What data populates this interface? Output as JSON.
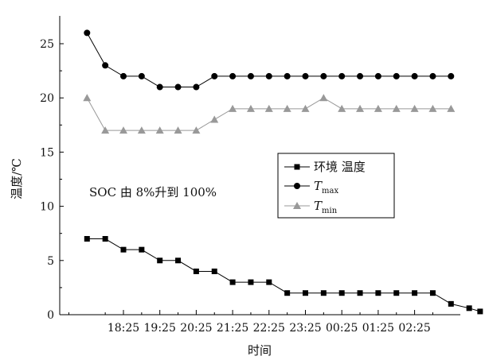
{
  "chart_data": {
    "type": "line",
    "xlabel": "时间",
    "ylabel": "温度/℃",
    "ylim": [
      0,
      27
    ],
    "yticks": [
      0,
      5,
      10,
      15,
      20,
      25
    ],
    "xtick_labels": [
      "18:25",
      "19:25",
      "20:25",
      "21:25",
      "22:25",
      "23:25",
      "00:25",
      "01:25",
      "02:25"
    ],
    "annotation": "SOC 由 8%升到 100%",
    "legend": {
      "position": "center-right",
      "entries": [
        {
          "label": "环境 温度",
          "sub": ""
        },
        {
          "label": "T",
          "sub": "max"
        },
        {
          "label": "T",
          "sub": "min"
        }
      ]
    },
    "series": [
      {
        "name": "环境 温度",
        "marker": "square",
        "color": "#000000",
        "x": [
          -1,
          -0.5,
          0,
          0.5,
          1,
          1.5,
          2,
          2.5,
          3,
          3.5,
          4,
          4.5,
          5,
          5.5,
          6,
          6.5,
          7,
          7.5,
          8,
          8.5,
          9,
          9.5,
          9.8
        ],
        "values": [
          7,
          7,
          6,
          6,
          5,
          5,
          4,
          4,
          3,
          3,
          3,
          2,
          2,
          2,
          2,
          2,
          2,
          2,
          2,
          2,
          1,
          0.6,
          0.3
        ]
      },
      {
        "name": "Tmax",
        "marker": "circle",
        "color": "#000000",
        "x": [
          -1,
          -0.5,
          0,
          0.5,
          1,
          1.5,
          2,
          2.5,
          3,
          3.5,
          4,
          4.5,
          5,
          5.5,
          6,
          6.5,
          7,
          7.5,
          8,
          8.5,
          9
        ],
        "values": [
          26,
          23,
          22,
          22,
          21,
          21,
          21,
          22,
          22,
          22,
          22,
          22,
          22,
          22,
          22,
          22,
          22,
          22,
          22,
          22,
          22
        ]
      },
      {
        "name": "Tmin",
        "marker": "triangle",
        "color": "#999999",
        "x": [
          -1,
          -0.5,
          0,
          0.5,
          1,
          1.5,
          2,
          2.5,
          3,
          3.5,
          4,
          4.5,
          5,
          5.5,
          6,
          6.5,
          7,
          7.5,
          8,
          8.5,
          9
        ],
        "values": [
          20,
          17,
          17,
          17,
          17,
          17,
          17,
          18,
          19,
          19,
          19,
          19,
          19,
          20,
          19,
          19,
          19,
          19,
          19,
          19,
          19
        ]
      }
    ]
  }
}
